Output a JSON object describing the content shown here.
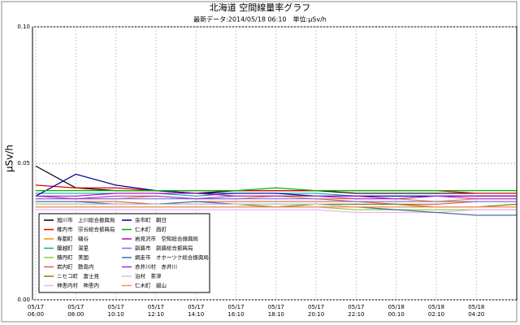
{
  "chart_data": {
    "type": "line",
    "title": "北海道 空間線量率グラフ",
    "subtitle": "最新データ:2014/05/18 06:10　単位:μSv/h",
    "y_label": "μSv/h",
    "categories": [
      [
        "05/17",
        "06:00"
      ],
      [
        "05/17",
        "08:00"
      ],
      [
        "05/17",
        "10:10"
      ],
      [
        "05/17",
        "12:10"
      ],
      [
        "05/17",
        "14:10"
      ],
      [
        "05/17",
        "16:10"
      ],
      [
        "05/17",
        "18:10"
      ],
      [
        "05/17",
        "20:10"
      ],
      [
        "05/17",
        "22:10"
      ],
      [
        "05/18",
        "00:10"
      ],
      [
        "05/18",
        "02:10"
      ],
      [
        "05/18",
        "04:20"
      ],
      null
    ],
    "ylim": [
      0,
      0.1
    ],
    "yticks": [
      {
        "value": 0,
        "label": "0.00"
      },
      {
        "value": 0.05,
        "label": "0.05"
      },
      {
        "value": 0.1,
        "label": "0.10"
      }
    ],
    "grid": true,
    "legend": "lower left",
    "series": [
      {
        "name": "旭川市　上川総合振興局",
        "color": "#000000",
        "values": [
          0.049,
          0.041,
          0.04,
          0.04,
          0.039,
          0.04,
          0.04,
          0.04,
          0.039,
          0.039,
          0.039,
          0.039,
          0.039
        ]
      },
      {
        "name": "稚内市　宗谷総合振興局",
        "color": "#e00000",
        "values": [
          0.042,
          0.041,
          0.041,
          0.04,
          0.04,
          0.04,
          0.04,
          0.04,
          0.04,
          0.04,
          0.04,
          0.039,
          0.039
        ]
      },
      {
        "name": "寿都町　磯谷",
        "color": "#ff8c00",
        "values": [
          0.037,
          0.037,
          0.037,
          0.038,
          0.037,
          0.037,
          0.038,
          0.037,
          0.037,
          0.037,
          0.036,
          0.037,
          0.037
        ]
      },
      {
        "name": "蘭越町　湯里",
        "color": "#00b0a0",
        "values": [
          0.039,
          0.039,
          0.039,
          0.039,
          0.038,
          0.039,
          0.039,
          0.039,
          0.038,
          0.038,
          0.038,
          0.038,
          0.038
        ]
      },
      {
        "name": "積丹町　美国",
        "color": "#90d040",
        "values": [
          0.034,
          0.034,
          0.034,
          0.034,
          0.034,
          0.034,
          0.034,
          0.034,
          0.033,
          0.033,
          0.033,
          0.033,
          0.033
        ]
      },
      {
        "name": "岩内町　敷島内",
        "color": "#e06048",
        "values": [
          0.036,
          0.036,
          0.036,
          0.035,
          0.036,
          0.036,
          0.036,
          0.036,
          0.036,
          0.035,
          0.035,
          0.036,
          0.036
        ]
      },
      {
        "name": "ニセコ町　富士見",
        "color": "#808000",
        "values": [
          0.035,
          0.035,
          0.035,
          0.035,
          0.035,
          0.035,
          0.034,
          0.035,
          0.035,
          0.035,
          0.034,
          0.034,
          0.035
        ]
      },
      {
        "name": "神恵内村　神恵内",
        "color": "#f0b0f0",
        "values": [
          0.033,
          0.033,
          0.033,
          0.033,
          0.033,
          0.033,
          0.033,
          0.033,
          0.032,
          0.032,
          0.032,
          0.033,
          0.033
        ]
      },
      {
        "name": "余市町　朝日",
        "color": "#0000a0",
        "values": [
          0.038,
          0.046,
          0.042,
          0.04,
          0.039,
          0.039,
          0.039,
          0.038,
          0.038,
          0.038,
          0.038,
          0.038,
          0.038
        ]
      },
      {
        "name": "仁木町　西町",
        "color": "#00b000",
        "values": [
          0.04,
          0.04,
          0.04,
          0.04,
          0.04,
          0.04,
          0.041,
          0.04,
          0.04,
          0.04,
          0.04,
          0.04,
          0.04
        ]
      },
      {
        "name": "岩見沢市　空知総合振興局",
        "color": "#c000c0",
        "values": [
          0.038,
          0.038,
          0.039,
          0.039,
          0.039,
          0.038,
          0.038,
          0.038,
          0.038,
          0.037,
          0.038,
          0.038,
          0.038
        ]
      },
      {
        "name": "釧路市　釧路総合振興局",
        "color": "#7070e0",
        "values": [
          0.037,
          0.037,
          0.037,
          0.037,
          0.037,
          0.037,
          0.037,
          0.037,
          0.036,
          0.036,
          0.036,
          0.036,
          0.036
        ]
      },
      {
        "name": "網走市　オホーツク総合振興局",
        "color": "#4070b0",
        "values": [
          0.036,
          0.036,
          0.035,
          0.035,
          0.036,
          0.035,
          0.035,
          0.035,
          0.034,
          0.033,
          0.032,
          0.031,
          0.031
        ]
      },
      {
        "name": "赤井川村　赤井川",
        "color": "#a030e0",
        "values": [
          0.038,
          0.037,
          0.038,
          0.038,
          0.037,
          0.038,
          0.038,
          0.038,
          0.037,
          0.037,
          0.038,
          0.037,
          0.037
        ]
      },
      {
        "name": "泊村　茶津",
        "color": "#c8c8c8",
        "values": [
          0.035,
          0.035,
          0.035,
          0.035,
          0.035,
          0.035,
          0.035,
          0.035,
          0.034,
          0.034,
          0.034,
          0.034,
          0.034
        ]
      },
      {
        "name": "仁木町　銀山",
        "color": "#f09060",
        "values": [
          0.034,
          0.034,
          0.034,
          0.034,
          0.034,
          0.034,
          0.034,
          0.034,
          0.034,
          0.034,
          0.034,
          0.034,
          0.034
        ]
      }
    ]
  }
}
